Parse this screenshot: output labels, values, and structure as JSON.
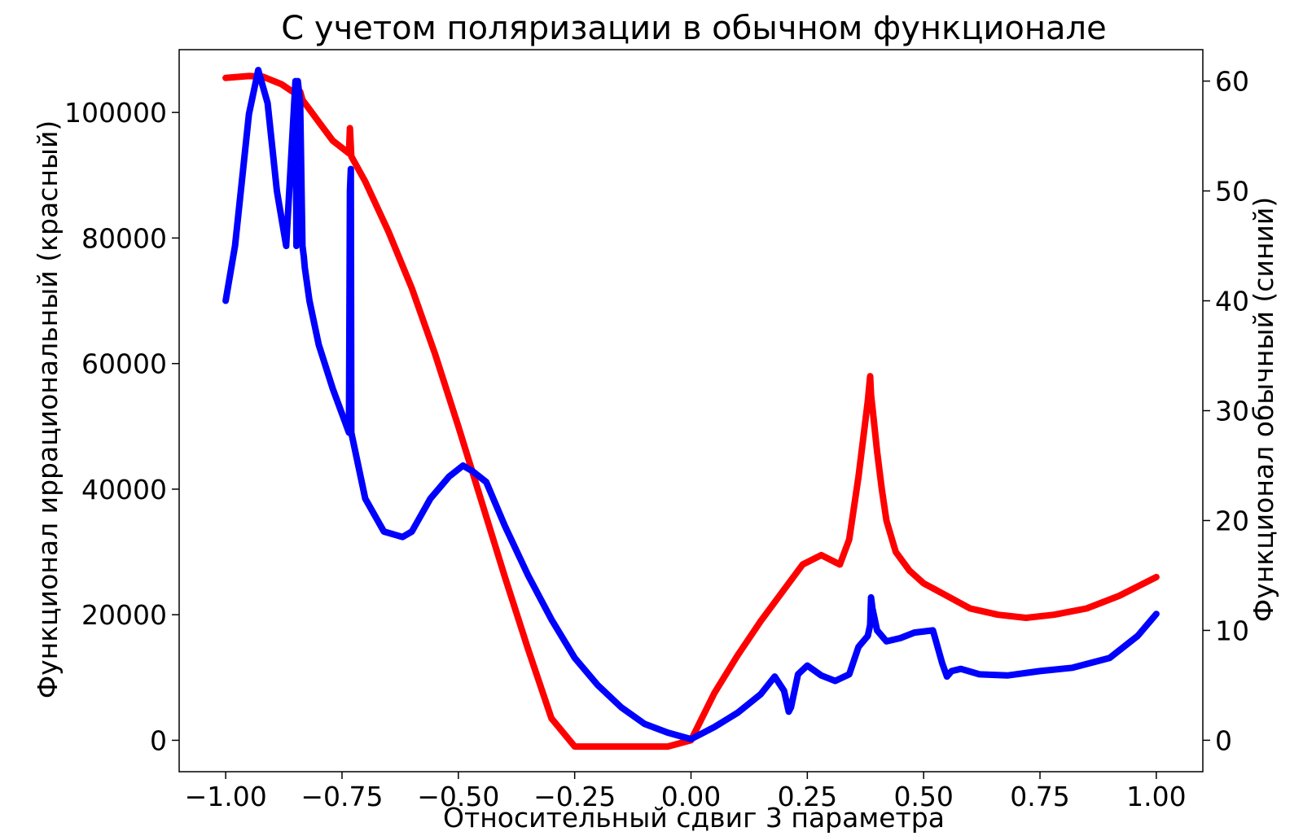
{
  "chart_data": {
    "type": "line",
    "title": "С учетом поляризации в обычном функционале",
    "xlabel": "Относительный сдвиг 3 параметра",
    "ylabel_left": "Функционал иррациональный (красный)",
    "ylabel_right": "Функционал обычный (синий)",
    "xlim": [
      -1.1,
      1.1
    ],
    "ylim_left": [
      -5000,
      110000
    ],
    "ylim_right": [
      -2.86,
      62.86
    ],
    "grid": false,
    "x_ticks": [
      -1.0,
      -0.75,
      -0.5,
      -0.25,
      0.0,
      0.25,
      0.5,
      0.75,
      1.0
    ],
    "x_tick_labels": [
      "−1.00",
      "−0.75",
      "−0.50",
      "−0.25",
      "0.00",
      "0.25",
      "0.50",
      "0.75",
      "1.00"
    ],
    "y_left_ticks": [
      0,
      20000,
      40000,
      60000,
      80000,
      100000
    ],
    "y_left_tick_labels": [
      "0",
      "20000",
      "40000",
      "60000",
      "80000",
      "100000"
    ],
    "y_right_ticks": [
      0,
      10,
      20,
      30,
      40,
      50,
      60
    ],
    "y_right_tick_labels": [
      "0",
      "10",
      "20",
      "30",
      "40",
      "50",
      "60"
    ],
    "series": [
      {
        "axis": "left",
        "color": "#ff0000",
        "x": [
          -1.0,
          -0.95,
          -0.92,
          -0.88,
          -0.85,
          -0.848,
          -0.845,
          -0.84,
          -0.835,
          -0.82,
          -0.8,
          -0.77,
          -0.735,
          -0.733,
          -0.73,
          -0.7,
          -0.65,
          -0.6,
          -0.55,
          -0.5,
          -0.45,
          -0.4,
          -0.35,
          -0.3,
          -0.25,
          -0.2,
          -0.15,
          -0.1,
          -0.05,
          0.0,
          0.02,
          0.05,
          0.1,
          0.15,
          0.2,
          0.24,
          0.28,
          0.32,
          0.34,
          0.36,
          0.37,
          0.38,
          0.385,
          0.387,
          0.39,
          0.4,
          0.41,
          0.42,
          0.44,
          0.47,
          0.5,
          0.55,
          0.6,
          0.66,
          0.72,
          0.78,
          0.85,
          0.92,
          1.0
        ],
        "y": [
          105500,
          105800,
          105700,
          104500,
          103000,
          104300,
          103600,
          103300,
          102000,
          100500,
          98500,
          95500,
          93500,
          97500,
          93000,
          89000,
          81000,
          72000,
          61500,
          50000,
          38000,
          26000,
          14500,
          3500,
          -1000,
          -1000,
          -1000,
          -1000,
          -1000,
          0,
          3000,
          7500,
          13500,
          19000,
          24000,
          28000,
          29500,
          28000,
          32000,
          42000,
          48000,
          54000,
          58000,
          55000,
          53000,
          46000,
          40000,
          35000,
          30000,
          27000,
          25000,
          23000,
          21000,
          20000,
          19500,
          20000,
          21000,
          23000,
          26000
        ]
      },
      {
        "axis": "right",
        "color": "#0000ff",
        "x": [
          -1.0,
          -0.98,
          -0.95,
          -0.93,
          -0.91,
          -0.89,
          -0.87,
          -0.85,
          -0.848,
          -0.845,
          -0.84,
          -0.835,
          -0.832,
          -0.83,
          -0.82,
          -0.8,
          -0.77,
          -0.735,
          -0.733,
          -0.731,
          -0.73,
          -0.7,
          -0.66,
          -0.62,
          -0.6,
          -0.56,
          -0.52,
          -0.49,
          -0.47,
          -0.44,
          -0.4,
          -0.35,
          -0.3,
          -0.25,
          -0.2,
          -0.15,
          -0.1,
          -0.05,
          0.0,
          0.05,
          0.1,
          0.15,
          0.18,
          0.2,
          0.21,
          0.215,
          0.23,
          0.25,
          0.28,
          0.31,
          0.34,
          0.36,
          0.38,
          0.385,
          0.387,
          0.39,
          0.4,
          0.42,
          0.45,
          0.48,
          0.52,
          0.54,
          0.55,
          0.56,
          0.58,
          0.62,
          0.68,
          0.75,
          0.82,
          0.9,
          0.96,
          1.0
        ],
        "y": [
          40,
          45,
          57,
          61,
          58,
          50,
          45,
          60,
          45,
          60,
          58,
          45,
          44,
          43,
          40,
          36,
          32,
          28,
          50,
          52,
          28,
          22,
          19,
          18.5,
          19,
          22,
          24,
          25,
          24.5,
          23.5,
          19.5,
          15,
          11,
          7.5,
          5,
          3,
          1.5,
          0.7,
          0.1,
          1.2,
          2.5,
          4.2,
          5.8,
          4.5,
          2.6,
          3.0,
          6.0,
          6.8,
          5.9,
          5.4,
          6.0,
          8.5,
          9.5,
          10.5,
          13.0,
          12.0,
          10.0,
          9.0,
          9.3,
          9.8,
          10.0,
          7.0,
          5.8,
          6.3,
          6.5,
          6.0,
          5.9,
          6.3,
          6.6,
          7.5,
          9.5,
          11.5
        ]
      }
    ]
  }
}
